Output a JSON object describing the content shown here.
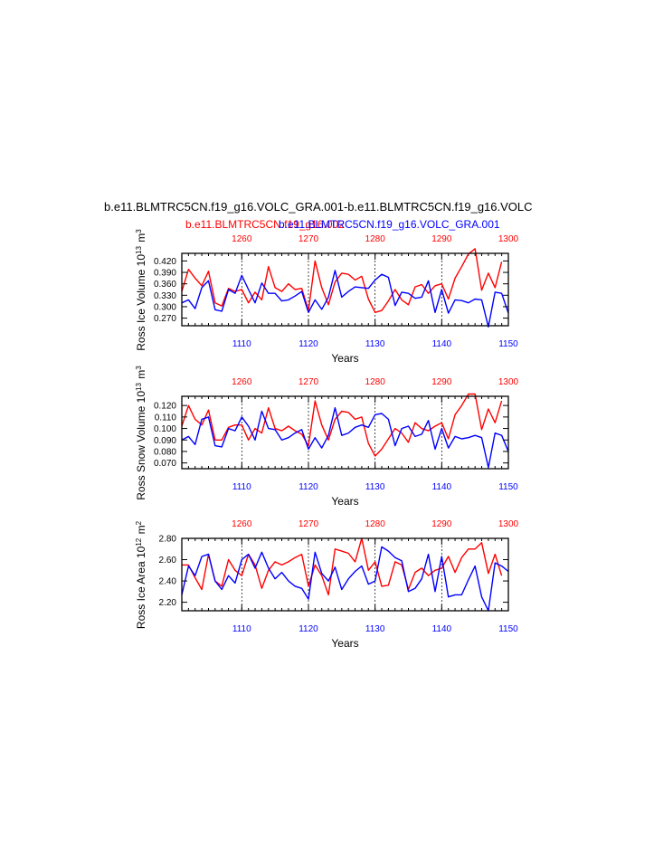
{
  "title": "b.e11.BLMTRC5CN.f19_g16.VOLC_GRA.001-b.e11.BLMTRC5CN.f19_g16.VOLC",
  "legend": {
    "left_label": "b.e11.BLMTRC5CN.f19_g16.002",
    "right_label": "b.e11.BLMTRC5CN.f19_g16.VOLC_GRA.001"
  },
  "colors": {
    "red": "#ff0000",
    "blue": "#0000ff"
  },
  "chart_data": [
    {
      "type": "line",
      "ylabel": "Ross Ice Volume 10^13 m^3",
      "xlabel": "Years",
      "ylim": [
        0.25,
        0.44
      ],
      "yticks": [
        "0.270",
        "0.300",
        "0.330",
        "0.360",
        "0.390",
        "0.420"
      ],
      "xlim_bottom": [
        1101,
        1150
      ],
      "xticks_bottom": [
        "1110",
        "1120",
        "1130",
        "1140",
        "1150"
      ],
      "xlim_top": [
        1251,
        1300
      ],
      "xticks_top": [
        "1260",
        "1270",
        "1280",
        "1290",
        "1300"
      ],
      "grid": "vertical dashed at top ticks",
      "series": [
        {
          "color": "red",
          "axis": "top",
          "x_start": 1251,
          "values": [
            0.34,
            0.398,
            0.375,
            0.355,
            0.393,
            0.31,
            0.302,
            0.348,
            0.34,
            0.345,
            0.31,
            0.338,
            0.318,
            0.405,
            0.35,
            0.34,
            0.36,
            0.345,
            0.348,
            0.29,
            0.42,
            0.35,
            0.305,
            0.365,
            0.388,
            0.385,
            0.37,
            0.38,
            0.32,
            0.285,
            0.29,
            0.315,
            0.345,
            0.318,
            0.305,
            0.352,
            0.358,
            0.335,
            0.355,
            0.36,
            0.32,
            0.375,
            0.405,
            0.438,
            0.452,
            0.343,
            0.388,
            0.35,
            0.418
          ]
        },
        {
          "color": "blue",
          "axis": "bottom",
          "x_start": 1101,
          "values": [
            0.31,
            0.318,
            0.295,
            0.35,
            0.368,
            0.292,
            0.288,
            0.345,
            0.335,
            0.382,
            0.345,
            0.31,
            0.362,
            0.335,
            0.335,
            0.315,
            0.318,
            0.328,
            0.34,
            0.285,
            0.318,
            0.293,
            0.325,
            0.395,
            0.325,
            0.34,
            0.352,
            0.35,
            0.348,
            0.37,
            0.385,
            0.377,
            0.303,
            0.338,
            0.335,
            0.322,
            0.325,
            0.368,
            0.285,
            0.345,
            0.283,
            0.318,
            0.316,
            0.31,
            0.32,
            0.318,
            0.247,
            0.338,
            0.335,
            0.283
          ]
        }
      ]
    },
    {
      "type": "line",
      "ylabel": "Ross Snow Volume 10^13 m^3",
      "xlabel": "Years",
      "ylim": [
        0.065,
        0.128
      ],
      "yticks": [
        "0.070",
        "0.080",
        "0.090",
        "0.100",
        "0.110",
        "0.120"
      ],
      "xlim_bottom": [
        1101,
        1150
      ],
      "xticks_bottom": [
        "1110",
        "1120",
        "1130",
        "1140",
        "1150"
      ],
      "xlim_top": [
        1251,
        1300
      ],
      "xticks_top": [
        "1260",
        "1270",
        "1280",
        "1290",
        "1300"
      ],
      "grid": "vertical dashed at top ticks",
      "series": [
        {
          "color": "red",
          "axis": "top",
          "x_start": 1251,
          "values": [
            0.102,
            0.12,
            0.108,
            0.103,
            0.116,
            0.09,
            0.09,
            0.101,
            0.103,
            0.103,
            0.09,
            0.1,
            0.096,
            0.118,
            0.1,
            0.098,
            0.102,
            0.098,
            0.095,
            0.085,
            0.124,
            0.103,
            0.09,
            0.108,
            0.115,
            0.114,
            0.108,
            0.11,
            0.087,
            0.076,
            0.082,
            0.091,
            0.1,
            0.096,
            0.088,
            0.105,
            0.1,
            0.098,
            0.102,
            0.105,
            0.091,
            0.112,
            0.12,
            0.13,
            0.13,
            0.099,
            0.117,
            0.105,
            0.124
          ]
        },
        {
          "color": "blue",
          "axis": "bottom",
          "x_start": 1101,
          "values": [
            0.09,
            0.093,
            0.086,
            0.108,
            0.11,
            0.085,
            0.084,
            0.1,
            0.098,
            0.11,
            0.102,
            0.09,
            0.115,
            0.1,
            0.099,
            0.09,
            0.092,
            0.096,
            0.099,
            0.082,
            0.092,
            0.083,
            0.094,
            0.118,
            0.094,
            0.096,
            0.101,
            0.103,
            0.101,
            0.112,
            0.113,
            0.108,
            0.085,
            0.1,
            0.102,
            0.093,
            0.095,
            0.107,
            0.082,
            0.1,
            0.083,
            0.093,
            0.091,
            0.092,
            0.094,
            0.092,
            0.066,
            0.096,
            0.094,
            0.08
          ]
        }
      ]
    },
    {
      "type": "line",
      "ylabel": "Ross Ice Area 10^12 m^2",
      "xlabel": "Years",
      "ylim": [
        2.12,
        2.8
      ],
      "yticks": [
        "2.20",
        "2.40",
        "2.60",
        "2.80"
      ],
      "xlim_bottom": [
        1101,
        1150
      ],
      "xticks_bottom": [
        "1110",
        "1120",
        "1130",
        "1140",
        "1150"
      ],
      "xlim_top": [
        1251,
        1300
      ],
      "xticks_top": [
        "1260",
        "1270",
        "1280",
        "1290",
        "1300"
      ],
      "grid": "vertical dashed at top ticks",
      "series": [
        {
          "color": "red",
          "axis": "top",
          "x_start": 1251,
          "values": [
            2.55,
            2.55,
            2.43,
            2.32,
            2.65,
            2.4,
            2.35,
            2.6,
            2.5,
            2.45,
            2.65,
            2.55,
            2.33,
            2.5,
            2.58,
            2.55,
            2.58,
            2.62,
            2.65,
            2.35,
            2.55,
            2.45,
            2.27,
            2.7,
            2.68,
            2.66,
            2.58,
            2.8,
            2.5,
            2.58,
            2.35,
            2.36,
            2.58,
            2.55,
            2.32,
            2.48,
            2.52,
            2.45,
            2.5,
            2.52,
            2.63,
            2.48,
            2.62,
            2.7,
            2.7,
            2.76,
            2.47,
            2.65,
            2.45
          ]
        },
        {
          "color": "blue",
          "axis": "bottom",
          "x_start": 1101,
          "values": [
            2.27,
            2.54,
            2.45,
            2.63,
            2.65,
            2.4,
            2.32,
            2.45,
            2.38,
            2.6,
            2.65,
            2.52,
            2.67,
            2.52,
            2.42,
            2.48,
            2.4,
            2.35,
            2.33,
            2.23,
            2.67,
            2.47,
            2.4,
            2.53,
            2.32,
            2.42,
            2.49,
            2.54,
            2.37,
            2.4,
            2.72,
            2.68,
            2.62,
            2.59,
            2.3,
            2.33,
            2.42,
            2.65,
            2.3,
            2.63,
            2.25,
            2.27,
            2.27,
            2.41,
            2.54,
            2.25,
            2.12,
            2.57,
            2.54,
            2.49
          ]
        }
      ]
    }
  ]
}
